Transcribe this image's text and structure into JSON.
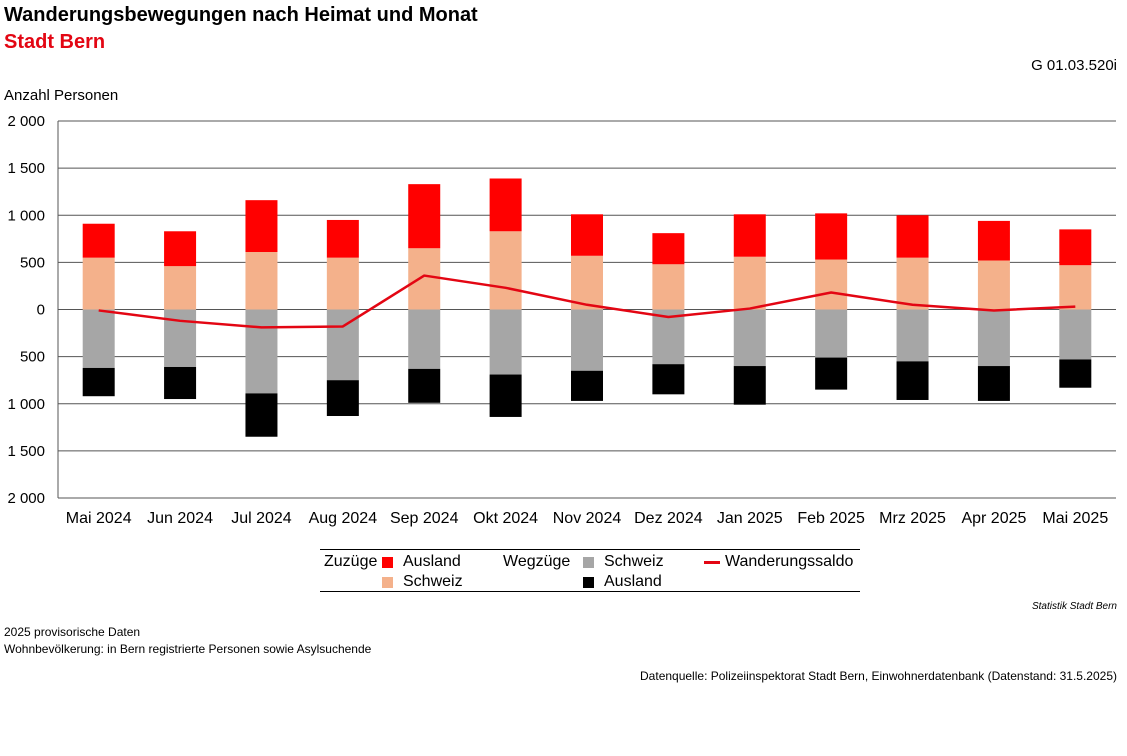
{
  "header": {
    "title": "Wanderungsbewegungen nach Heimat und Monat",
    "subtitle": "Stadt Bern",
    "code": "G 01.03.520i"
  },
  "chart_data": {
    "type": "bar",
    "stacked": true,
    "ylabel": "Anzahl Personen",
    "ylim": [
      -2000,
      2000
    ],
    "yticks": [
      2000,
      1500,
      1000,
      500,
      0,
      -500,
      -1000,
      -1500,
      -2000
    ],
    "ytick_labels": [
      "2 000",
      "1 500",
      "1 000",
      "500",
      "0",
      "500",
      "1 000",
      "1 500",
      "2 000"
    ],
    "grid": true,
    "categories": [
      "Mai 2024",
      "Jun 2024",
      "Jul 2024",
      "Aug 2024",
      "Sep 2024",
      "Okt 2024",
      "Nov 2024",
      "Dez 2024",
      "Jan 2025",
      "Feb 2025",
      "Mrz 2025",
      "Apr 2025",
      "Mai 2025"
    ],
    "series": [
      {
        "group": "Zuzüge",
        "name": "Schweiz",
        "color": "#f4b18b",
        "values": [
          550,
          460,
          610,
          550,
          650,
          830,
          570,
          480,
          560,
          530,
          550,
          520,
          470
        ]
      },
      {
        "group": "Zuzüge",
        "name": "Ausland",
        "color": "#ff0000",
        "values": [
          360,
          370,
          550,
          400,
          680,
          560,
          440,
          330,
          450,
          490,
          450,
          420,
          380
        ]
      },
      {
        "group": "Wegzüge",
        "name": "Schweiz",
        "color": "#a6a6a6",
        "values": [
          -620,
          -610,
          -890,
          -750,
          -630,
          -690,
          -650,
          -580,
          -600,
          -510,
          -550,
          -600,
          -530
        ]
      },
      {
        "group": "Wegzüge",
        "name": "Ausland",
        "color": "#000000",
        "values": [
          -300,
          -340,
          -460,
          -380,
          -360,
          -450,
          -320,
          -320,
          -410,
          -340,
          -410,
          -370,
          -300
        ]
      },
      {
        "name": "Wanderungssaldo",
        "type": "line",
        "color": "#e30613",
        "values": [
          -10,
          -120,
          -190,
          -180,
          360,
          230,
          50,
          -80,
          10,
          180,
          50,
          -10,
          30
        ]
      }
    ],
    "legend": {
      "position": "bottom",
      "zuzuege_label": "Zuzüge",
      "wegzuege_label": "Wegzüge",
      "zu_ausland": "Ausland",
      "zu_schweiz": "Schweiz",
      "weg_schweiz": "Schweiz",
      "weg_ausland": "Ausland",
      "saldo": "Wanderungssaldo"
    }
  },
  "footer": {
    "brand": "Statistik Stadt Bern",
    "note1": "2025 provisorische Daten",
    "note2": "Wohnbevölkerung: in Bern registrierte Personen sowie Asylsuchende",
    "source": "Datenquelle: Polizeiinspektorat Stadt Bern, Einwohnerdatenbank (Datenstand: 31.5.2025)"
  }
}
